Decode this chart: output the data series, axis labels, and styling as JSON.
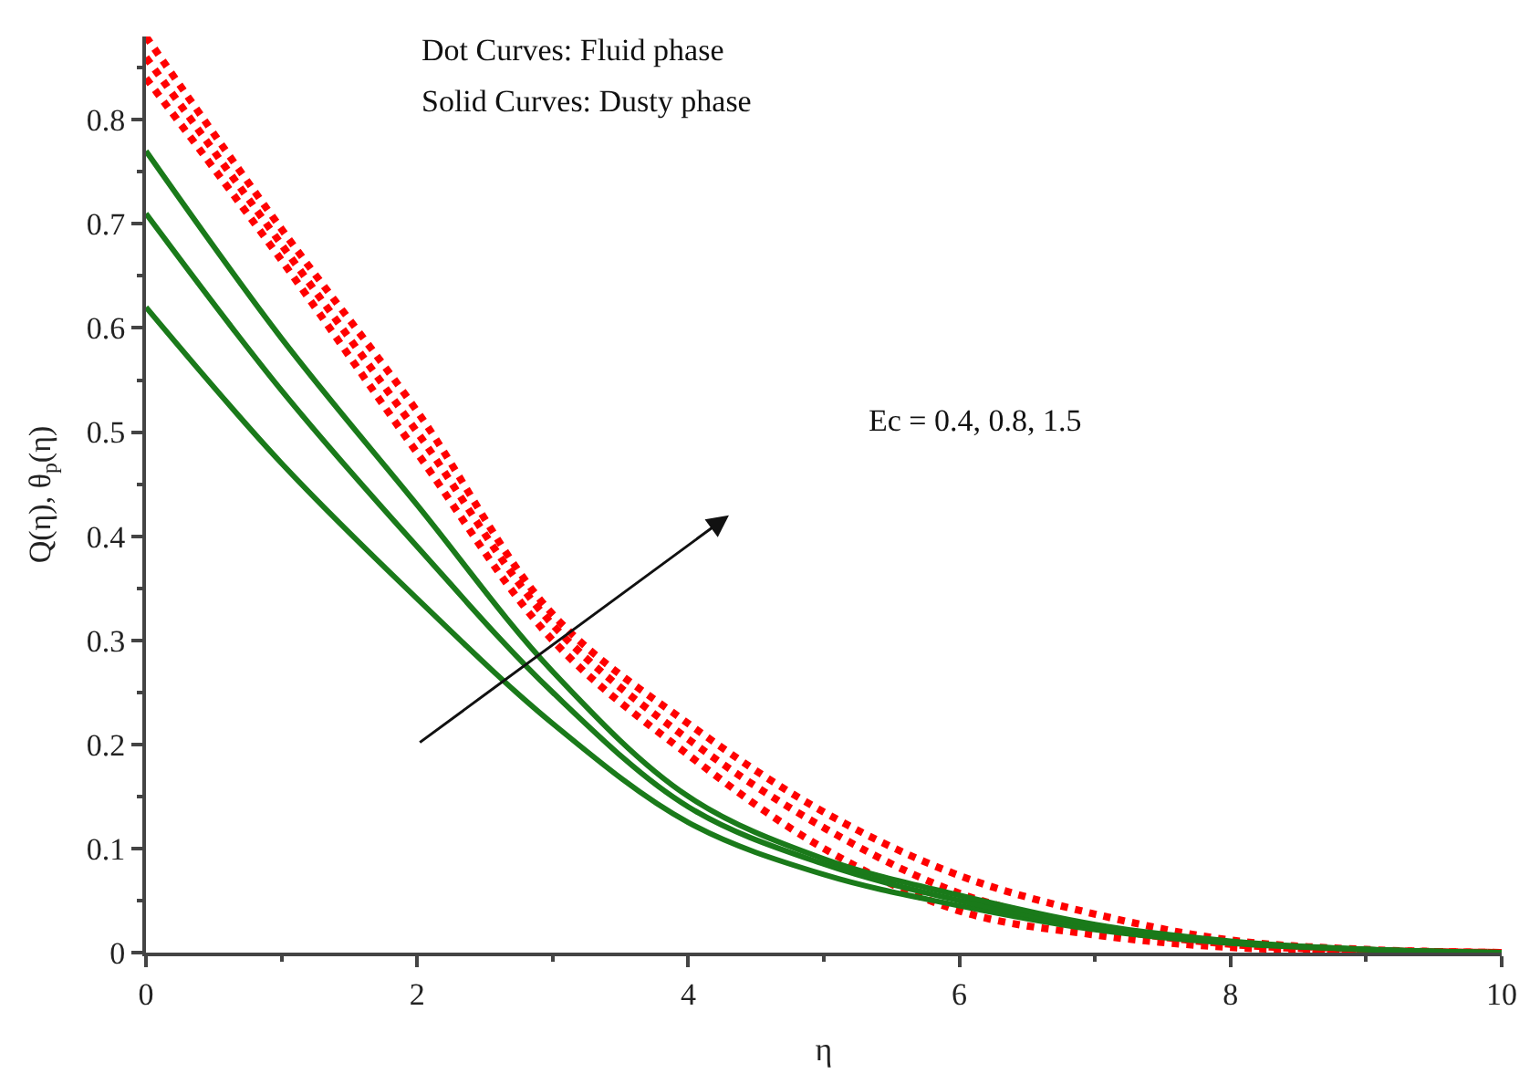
{
  "chart_data": {
    "type": "line",
    "xlabel": "η",
    "ylabel": "Q(η), θ$_{p}$(η)",
    "x": [
      0,
      1,
      2,
      3,
      4,
      5,
      6,
      7,
      8,
      9,
      10
    ],
    "series": [
      {
        "color": "#ff0000",
        "line_style": "dotted",
        "values": [
          0.84,
          0.665,
          0.48,
          0.3,
          0.19,
          0.1,
          0.04,
          0.017,
          0.005,
          0.002,
          0
        ]
      },
      {
        "color": "#ff0000",
        "line_style": "dotted",
        "values": [
          0.86,
          0.68,
          0.5,
          0.315,
          0.205,
          0.12,
          0.057,
          0.025,
          0.008,
          0.002,
          0
        ]
      },
      {
        "color": "#ff0000",
        "line_style": "dotted",
        "values": [
          0.88,
          0.695,
          0.52,
          0.325,
          0.22,
          0.135,
          0.074,
          0.037,
          0.012,
          0.003,
          0
        ]
      },
      {
        "color": "#1a7a1a",
        "line_style": "solid",
        "values": [
          0.62,
          0.47,
          0.34,
          0.22,
          0.125,
          0.075,
          0.045,
          0.022,
          0.009,
          0.003,
          0
        ]
      },
      {
        "color": "#1a7a1a",
        "line_style": "solid",
        "values": [
          0.71,
          0.54,
          0.39,
          0.25,
          0.14,
          0.085,
          0.05,
          0.025,
          0.01,
          0.003,
          0
        ]
      },
      {
        "color": "#1a7a1a",
        "line_style": "solid",
        "values": [
          0.77,
          0.59,
          0.43,
          0.27,
          0.15,
          0.09,
          0.055,
          0.027,
          0.011,
          0.003,
          0
        ]
      }
    ],
    "xlim": [
      0,
      10
    ],
    "xticks": [
      0,
      2,
      4,
      6,
      8,
      10
    ],
    "ylim": [
      0,
      0.88
    ],
    "yticks": [
      0,
      0.1,
      0.2,
      0.3,
      0.4,
      0.5,
      0.6,
      0.7,
      0.8
    ],
    "marker": "none",
    "annotations": [
      "Dot Curves: Fluid phase",
      "Solid Curves: Dusty phase",
      "Ec = 0.4, 0.8, 1.5"
    ]
  }
}
